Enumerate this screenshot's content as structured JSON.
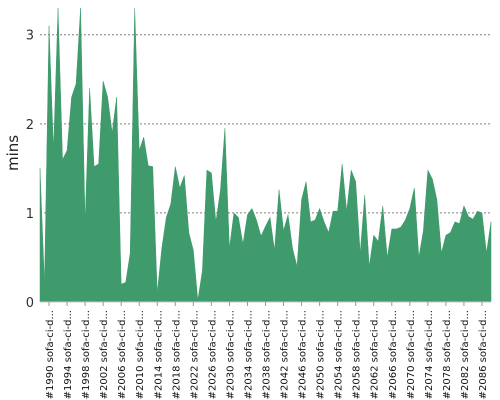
{
  "chart_data": {
    "type": "area",
    "xlabel": "",
    "ylabel": "mins",
    "ylim": [
      0,
      3.3
    ],
    "yticks": [
      0,
      1,
      2,
      3
    ],
    "grid": true,
    "color": "#3f9a6c",
    "x_tick_labels": [
      "#1990 sofa-ci-d...",
      "#1994 sofa-ci-d...",
      "#1998 sofa-ci-d...",
      "#2002 sofa-ci-d...",
      "#2006 sofa-ci-d...",
      "#2010 sofa-ci-d...",
      "#2014 sofa-ci-d...",
      "#2018 sofa-ci-d...",
      "#2022 sofa-ci-d...",
      "#2026 sofa-ci-d...",
      "#2030 sofa-ci-d...",
      "#2034 sofa-ci-d...",
      "#2038 sofa-ci-d...",
      "#2042 sofa-ci-d...",
      "#2046 sofa-ci-d...",
      "#2050 sofa-ci-d...",
      "#2054 sofa-ci-d...",
      "#2058 sofa-ci-d...",
      "#2062 sofa-ci-d...",
      "#2066 sofa-ci-d...",
      "#2070 sofa-ci-d...",
      "#2074 sofa-ci-d...",
      "#2078 sofa-ci-d...",
      "#2082 sofa-ci-d...",
      "#2086 sofa-ci-d..."
    ],
    "x_start": 1988,
    "values": [
      1.5,
      0.2,
      3.1,
      1.7,
      3.3,
      1.6,
      1.7,
      2.3,
      2.45,
      3.3,
      0.9,
      2.4,
      1.52,
      1.55,
      2.48,
      2.3,
      1.9,
      2.3,
      0.2,
      0.22,
      0.55,
      3.3,
      1.7,
      1.85,
      1.53,
      1.52,
      0.1,
      0.6,
      0.95,
      1.1,
      1.52,
      1.28,
      1.42,
      0.78,
      0.58,
      0.02,
      0.35,
      1.48,
      1.45,
      0.9,
      1.25,
      1.95,
      0.6,
      1.0,
      0.95,
      0.65,
      0.98,
      1.05,
      0.92,
      0.74,
      0.85,
      0.95,
      0.58,
      1.26,
      0.8,
      0.98,
      0.6,
      0.4,
      1.15,
      1.35,
      0.9,
      0.92,
      1.05,
      0.9,
      0.78,
      1.02,
      1.02,
      1.55,
      1.02,
      1.48,
      1.35,
      0.55,
      1.2,
      0.4,
      0.75,
      0.68,
      1.08,
      0.5,
      0.82,
      0.82,
      0.84,
      0.92,
      1.05,
      1.28,
      0.5,
      0.8,
      1.48,
      1.38,
      1.15,
      0.55,
      0.75,
      0.78,
      0.9,
      0.88,
      1.08,
      0.96,
      0.93,
      1.02,
      1.0,
      0.55,
      0.9
    ]
  }
}
